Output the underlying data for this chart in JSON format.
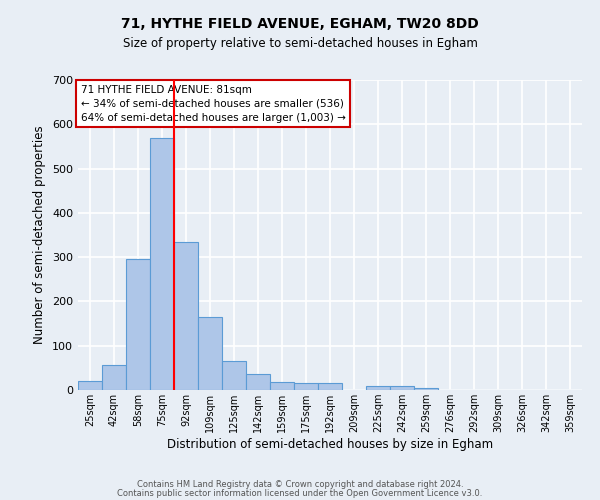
{
  "title1": "71, HYTHE FIELD AVENUE, EGHAM, TW20 8DD",
  "title2": "Size of property relative to semi-detached houses in Egham",
  "xlabel": "Distribution of semi-detached houses by size in Egham",
  "ylabel": "Number of semi-detached properties",
  "categories": [
    "25sqm",
    "42sqm",
    "58sqm",
    "75sqm",
    "92sqm",
    "109sqm",
    "125sqm",
    "142sqm",
    "159sqm",
    "175sqm",
    "192sqm",
    "209sqm",
    "225sqm",
    "242sqm",
    "259sqm",
    "276sqm",
    "292sqm",
    "309sqm",
    "326sqm",
    "342sqm",
    "359sqm"
  ],
  "values": [
    20,
    57,
    295,
    570,
    335,
    165,
    65,
    37,
    18,
    15,
    15,
    0,
    8,
    8,
    5,
    0,
    0,
    0,
    0,
    0,
    0
  ],
  "bar_color": "#aec6e8",
  "bar_edgecolor": "#5b9bd5",
  "ylim": [
    0,
    700
  ],
  "yticks": [
    0,
    100,
    200,
    300,
    400,
    500,
    600,
    700
  ],
  "red_line_x": 3.5,
  "annotation_title": "71 HYTHE FIELD AVENUE: 81sqm",
  "annotation_line1": "← 34% of semi-detached houses are smaller (536)",
  "annotation_line2": "64% of semi-detached houses are larger (1,003) →",
  "annotation_box_color": "#ffffff",
  "annotation_box_edgecolor": "#cc0000",
  "footer1": "Contains HM Land Registry data © Crown copyright and database right 2024.",
  "footer2": "Contains public sector information licensed under the Open Government Licence v3.0.",
  "background_color": "#e8eef5",
  "plot_background": "#e8eef5",
  "grid_color": "#ffffff"
}
